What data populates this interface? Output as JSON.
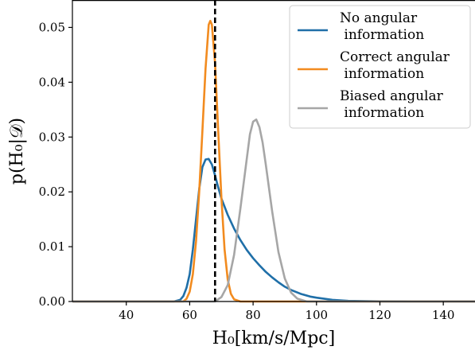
{
  "chart_data": {
    "type": "line",
    "xlabel": "H₀[km/s/Mpc]",
    "ylabel": "p(H₀|𝒟)",
    "xlim": [
      23,
      150
    ],
    "ylim": [
      0,
      0.055
    ],
    "xticks": [
      40,
      60,
      80,
      100,
      120,
      140
    ],
    "xtick_labels": [
      "40",
      "60",
      "80",
      "100",
      "120",
      "140"
    ],
    "yticks": [
      0,
      0.01,
      0.02,
      0.03,
      0.04,
      0.05
    ],
    "ytick_labels": [
      "0.00",
      "0.01",
      "0.02",
      "0.03",
      "0.04",
      "0.05"
    ],
    "grid": false,
    "legend_position": "top-right",
    "reference_line": {
      "x": 68,
      "style": "dashed",
      "color": "#000000"
    },
    "series": [
      {
        "name_lines": [
          "No angular",
          " information"
        ],
        "color": "#1f6fa8",
        "x": [
          23,
          55,
          57,
          58,
          59,
          60,
          61,
          62,
          63,
          64,
          65,
          66,
          67,
          68,
          69,
          70,
          72,
          74,
          76,
          78,
          80,
          82,
          84,
          86,
          88,
          90,
          92,
          95,
          98,
          100,
          105,
          110,
          120,
          130,
          150
        ],
        "y": [
          0,
          0,
          0.0003,
          0.001,
          0.0025,
          0.005,
          0.0095,
          0.015,
          0.0205,
          0.0245,
          0.0259,
          0.026,
          0.025,
          0.023,
          0.0208,
          0.0188,
          0.0158,
          0.0133,
          0.0112,
          0.0094,
          0.0079,
          0.0066,
          0.0054,
          0.0044,
          0.0035,
          0.0027,
          0.0021,
          0.0014,
          0.0009,
          0.0007,
          0.0003,
          0.00012,
          2e-05,
          0,
          0
        ]
      },
      {
        "name_lines": [
          "Correct angular",
          " information"
        ],
        "color": "#f28b1f",
        "x": [
          23,
          58,
          59,
          60,
          61,
          62,
          63,
          64,
          65,
          66,
          66.5,
          67,
          68,
          69,
          70,
          71,
          72,
          73,
          74,
          76,
          150
        ],
        "y": [
          0,
          0,
          0.0005,
          0.0018,
          0.005,
          0.011,
          0.02,
          0.031,
          0.0425,
          0.0505,
          0.0512,
          0.0505,
          0.0435,
          0.031,
          0.019,
          0.0095,
          0.004,
          0.0014,
          0.0004,
          0,
          0
        ]
      },
      {
        "name_lines": [
          "Biased angular",
          " information"
        ],
        "color": "#a6a6a6",
        "x": [
          23,
          68,
          70,
          72,
          74,
          76,
          78,
          79,
          80,
          81,
          82,
          83,
          84,
          86,
          88,
          90,
          92,
          94,
          97,
          150
        ],
        "y": [
          0,
          0,
          0.0008,
          0.003,
          0.0085,
          0.017,
          0.026,
          0.0305,
          0.0328,
          0.0332,
          0.0318,
          0.029,
          0.025,
          0.0165,
          0.009,
          0.0042,
          0.0016,
          0.0005,
          0,
          0
        ]
      }
    ]
  }
}
